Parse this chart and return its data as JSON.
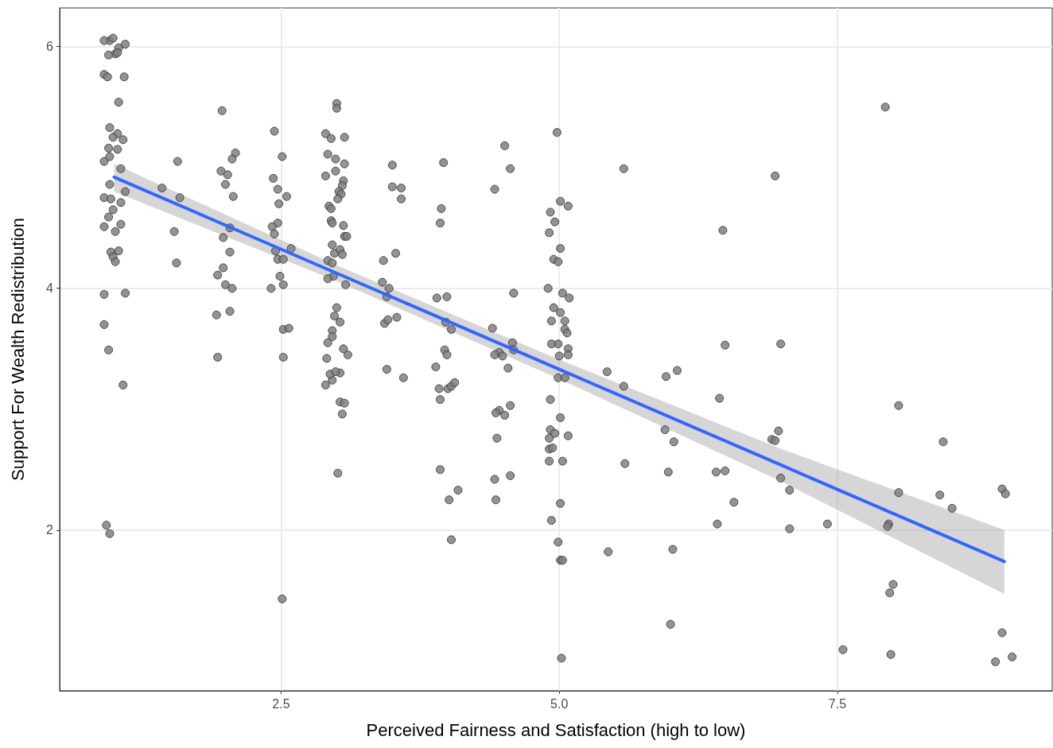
{
  "chart_data": {
    "type": "scatter",
    "xlabel": "Perceived Fairness and Satisfaction (high to low)",
    "ylabel": "Support For Wealth Redistribution",
    "xlim": [
      0.51,
      9.43
    ],
    "ylim": [
      0.67,
      6.32
    ],
    "xticks": [
      2.5,
      {
        "value": 5,
        "label": "5.0"
      },
      7.5
    ],
    "yticks": [
      2,
      4,
      6
    ],
    "grid": true,
    "marker": "circle",
    "series": [
      {
        "color": "#808080",
        "x": [
          0.96,
          0.99,
          0.91,
          1.04,
          1.1,
          1.01,
          0.95,
          1.03,
          0.91,
          0.94,
          1.09,
          1.04,
          0.96,
          1.03,
          0.99,
          1.08,
          0.95,
          1.03,
          0.91,
          0.96,
          1.06,
          0.96,
          0.91,
          0.97,
          1.06,
          0.99,
          0.95,
          1.06,
          0.91,
          1.01,
          0.97,
          1.04,
          0.99,
          1.01,
          1.1,
          0.91,
          0.91,
          0.95,
          1.08,
          0.93,
          0.96,
          1.1,
          1.43,
          1.54,
          1.56,
          1.57,
          1.59,
          1.97,
          2.09,
          2.06,
          1.96,
          2.02,
          2.0,
          2.07,
          1.98,
          2.04,
          2.04,
          1.98,
          1.93,
          2.0,
          2.06,
          1.92,
          2.04,
          1.93,
          2.44,
          2.51,
          2.43,
          2.47,
          2.55,
          2.48,
          2.47,
          2.42,
          2.44,
          2.45,
          2.59,
          2.47,
          2.52,
          2.49,
          2.52,
          2.41,
          2.52,
          2.57,
          2.52,
          2.51,
          3.0,
          3.0,
          2.9,
          2.95,
          3.07,
          2.92,
          2.99,
          3.07,
          2.99,
          2.9,
          3.06,
          3.05,
          3.02,
          3.04,
          3.01,
          2.93,
          2.95,
          3.06,
          3.07,
          3.09,
          2.95,
          2.96,
          2.96,
          2.98,
          3.03,
          3.05,
          2.92,
          2.96,
          3.08,
          2.97,
          2.92,
          3.0,
          2.98,
          2.96,
          3.03,
          2.92,
          2.96,
          3.06,
          3.1,
          2.91,
          2.9,
          2.96,
          3.03,
          2.94,
          2.99,
          3.03,
          3.07,
          3.05,
          3.01,
          3.41,
          3.45,
          3.47,
          3.43,
          3.46,
          3.54,
          3.42,
          3.53,
          3.5,
          3.5,
          3.58,
          3.58,
          3.45,
          3.6,
          3.96,
          3.94,
          3.93,
          3.9,
          3.99,
          3.98,
          4.03,
          3.97,
          3.99,
          3.89,
          4.0,
          4.03,
          4.06,
          3.92,
          3.93,
          3.93,
          4.09,
          4.01,
          4.03,
          4.51,
          4.56,
          4.42,
          4.4,
          4.46,
          4.42,
          4.49,
          4.58,
          4.59,
          4.46,
          4.43,
          4.51,
          4.56,
          4.54,
          4.59,
          4.44,
          4.42,
          4.43,
          4.56,
          4.98,
          4.92,
          4.96,
          5.01,
          5.08,
          5.01,
          4.91,
          4.95,
          4.99,
          4.9,
          5.03,
          5.09,
          4.95,
          5.01,
          5.05,
          4.93,
          5.05,
          5.07,
          4.99,
          4.93,
          5.08,
          5.08,
          5.0,
          4.99,
          5.05,
          4.92,
          5.01,
          5.08,
          4.92,
          4.91,
          4.96,
          4.91,
          4.94,
          5.03,
          4.91,
          5.01,
          4.93,
          4.99,
          5.01,
          5.03,
          5.02,
          5.58,
          5.43,
          5.58,
          5.44,
          5.59,
          5.95,
          5.96,
          6.06,
          6.03,
          5.98,
          6.02,
          6.0,
          6.47,
          6.44,
          6.49,
          6.41,
          6.49,
          6.57,
          6.42,
          6.94,
          6.99,
          6.97,
          6.91,
          6.94,
          6.99,
          7.07,
          7.07,
          7.41,
          7.55,
          7.93,
          8.05,
          7.96,
          7.95,
          8.05,
          8.0,
          7.97,
          7.98,
          8.45,
          8.42,
          8.53,
          8.98,
          9.01,
          8.98,
          9.07,
          8.92
        ],
        "values": [
          6.05,
          6.07,
          6.05,
          5.99,
          6.02,
          5.94,
          5.93,
          5.95,
          5.77,
          5.75,
          5.75,
          5.54,
          5.33,
          5.28,
          5.25,
          5.23,
          5.16,
          5.15,
          5.05,
          5.09,
          4.99,
          4.86,
          4.75,
          4.74,
          4.71,
          4.65,
          4.59,
          4.53,
          4.51,
          4.47,
          4.3,
          4.31,
          4.26,
          4.22,
          3.96,
          3.95,
          3.7,
          3.49,
          3.2,
          2.04,
          1.97,
          4.8,
          4.83,
          4.47,
          4.21,
          5.05,
          4.75,
          5.47,
          5.12,
          5.07,
          4.97,
          4.94,
          4.86,
          4.76,
          4.42,
          4.5,
          4.3,
          4.17,
          4.11,
          4.03,
          4.0,
          3.78,
          3.81,
          3.43,
          5.3,
          5.09,
          4.91,
          4.82,
          4.76,
          4.7,
          4.54,
          4.51,
          4.45,
          4.31,
          4.33,
          4.24,
          4.24,
          4.1,
          4.03,
          4.0,
          3.66,
          3.67,
          3.43,
          1.43,
          5.53,
          5.49,
          5.28,
          5.24,
          5.25,
          5.11,
          5.07,
          5.03,
          4.97,
          4.93,
          4.89,
          4.85,
          4.8,
          4.78,
          4.74,
          4.68,
          4.66,
          4.52,
          4.43,
          4.43,
          4.56,
          4.54,
          4.36,
          4.29,
          4.32,
          4.28,
          4.23,
          4.21,
          4.03,
          4.1,
          4.08,
          3.84,
          3.77,
          3.65,
          3.72,
          3.55,
          3.6,
          3.5,
          3.45,
          3.42,
          3.2,
          3.24,
          3.3,
          3.29,
          3.31,
          3.06,
          3.05,
          2.96,
          2.47,
          4.05,
          3.93,
          4.0,
          3.71,
          3.74,
          3.76,
          4.23,
          4.29,
          5.02,
          4.84,
          4.83,
          4.74,
          3.33,
          3.26,
          5.04,
          4.66,
          4.54,
          3.92,
          3.93,
          3.72,
          3.66,
          3.49,
          3.45,
          3.35,
          3.17,
          3.19,
          3.22,
          3.17,
          3.08,
          2.5,
          2.33,
          2.25,
          1.92,
          5.18,
          4.99,
          4.82,
          3.67,
          3.47,
          3.45,
          3.44,
          3.55,
          3.49,
          2.99,
          2.97,
          2.95,
          3.03,
          3.34,
          3.96,
          2.76,
          2.42,
          2.25,
          2.45,
          5.29,
          4.63,
          4.55,
          4.72,
          4.68,
          4.33,
          4.46,
          4.24,
          4.22,
          4.0,
          3.96,
          3.92,
          3.84,
          3.8,
          3.73,
          3.73,
          3.66,
          3.63,
          3.54,
          3.54,
          3.5,
          3.45,
          3.44,
          3.26,
          3.26,
          3.08,
          2.93,
          2.78,
          2.83,
          2.76,
          2.8,
          2.67,
          2.68,
          2.57,
          2.57,
          2.22,
          2.08,
          1.9,
          1.75,
          1.75,
          0.94,
          4.99,
          3.31,
          3.19,
          1.82,
          2.55,
          2.83,
          3.27,
          3.32,
          2.73,
          2.48,
          1.84,
          1.22,
          4.48,
          3.09,
          3.53,
          2.48,
          2.49,
          2.23,
          2.05,
          4.93,
          3.54,
          2.82,
          2.75,
          2.74,
          2.43,
          2.33,
          2.01,
          2.05,
          1.01,
          5.5,
          3.03,
          2.05,
          2.03,
          2.31,
          1.55,
          1.48,
          0.97,
          2.73,
          2.29,
          2.18,
          2.34,
          2.3,
          1.15,
          0.95,
          0.91
        ]
      },
      {
        "type": "line",
        "color": "#3366ff",
        "marker": "none",
        "line_style": "solid",
        "x": [
          1,
          3,
          5,
          7,
          9
        ],
        "values": [
          4.92,
          4.125,
          3.33,
          2.535,
          1.74
        ],
        "lower": [
          4.8,
          4.06,
          3.25,
          2.4,
          1.47
        ],
        "upper": [
          5.03,
          4.19,
          3.41,
          2.67,
          2.0
        ]
      }
    ]
  }
}
